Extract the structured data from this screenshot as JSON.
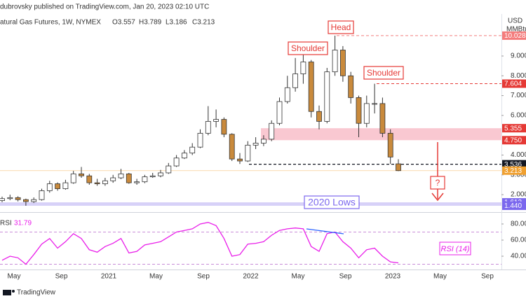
{
  "header": {
    "publisher": "dubrovsky published on TradingView.com, Jan 20, 2023 02:10 UTC",
    "symbol": "atural Gas Futures, 1W, NYMEX",
    "ohlc": [
      "O3.557",
      "H3.789",
      "L3.186",
      "C3.213"
    ],
    "currency": "USD",
    "unit": "MMBtu"
  },
  "chart_data": {
    "type": "candlestick",
    "open": [
      1.7,
      1.8,
      1.85,
      1.75,
      1.65,
      1.75,
      2.2,
      2.55,
      2.3,
      2.6,
      3.05,
      2.95,
      2.6,
      2.55,
      2.7,
      2.85,
      3.05,
      2.6,
      2.65,
      2.9,
      2.95,
      3.1,
      3.45,
      3.85,
      4.1,
      4.4,
      5.1,
      5.7,
      5.8,
      5.05,
      3.8,
      3.7,
      4.5,
      4.6,
      4.8,
      5.6,
      6.7,
      7.4,
      8.1,
      8.7,
      6.2,
      5.7,
      8.2,
      9.3,
      8.0,
      6.9,
      5.6,
      6.6,
      6.6,
      5.1,
      3.557
    ],
    "high": [
      1.9,
      2.0,
      1.92,
      1.8,
      1.86,
      2.3,
      2.7,
      2.62,
      2.75,
      3.2,
      3.4,
      3.05,
      2.8,
      2.85,
      3.0,
      3.3,
      3.1,
      2.8,
      3.0,
      3.1,
      3.25,
      3.6,
      4.0,
      4.25,
      4.6,
      5.3,
      6.47,
      6.3,
      5.9,
      5.1,
      4.1,
      4.7,
      4.9,
      5.0,
      5.75,
      6.9,
      8.0,
      8.9,
      9.4,
      8.8,
      6.5,
      8.4,
      10.03,
      9.5,
      8.2,
      7.0,
      7.0,
      7.6,
      6.9,
      5.3,
      3.789
    ],
    "low": [
      1.62,
      1.72,
      1.66,
      1.44,
      1.58,
      1.7,
      2.1,
      2.2,
      2.25,
      2.55,
      2.85,
      2.5,
      2.45,
      2.45,
      2.6,
      2.78,
      2.55,
      2.5,
      2.58,
      2.85,
      2.88,
      3.05,
      3.4,
      3.8,
      4.0,
      4.35,
      5.0,
      5.4,
      4.9,
      3.7,
      3.55,
      3.65,
      4.3,
      4.45,
      4.7,
      5.5,
      6.6,
      7.2,
      7.6,
      5.9,
      5.3,
      5.6,
      8.0,
      7.7,
      6.6,
      4.9,
      5.4,
      6.1,
      4.9,
      3.55,
      3.186
    ],
    "close": [
      1.8,
      1.85,
      1.75,
      1.65,
      1.75,
      2.2,
      2.55,
      2.3,
      2.6,
      3.05,
      2.95,
      2.6,
      2.55,
      2.7,
      2.85,
      3.05,
      2.6,
      2.65,
      2.9,
      2.95,
      3.1,
      3.45,
      3.85,
      4.1,
      4.4,
      5.1,
      5.7,
      5.8,
      5.05,
      3.8,
      3.7,
      4.5,
      4.6,
      4.8,
      5.6,
      6.7,
      7.4,
      8.1,
      8.7,
      6.2,
      5.7,
      8.2,
      9.3,
      8.0,
      6.9,
      5.6,
      6.6,
      6.6,
      5.1,
      3.9,
      3.213
    ],
    "up_color": "#ffffff",
    "down_color": "#c98a3c",
    "ylim": [
      1.12,
      11.12
    ],
    "yticks": [
      {
        "value": 2,
        "label": "2.000"
      },
      {
        "value": 3,
        "label": "3.000"
      },
      {
        "value": 4,
        "label": "4.000"
      },
      {
        "value": 6,
        "label": "6.000"
      },
      {
        "value": 7,
        "label": "7.000"
      },
      {
        "value": 8,
        "label": "8.000"
      },
      {
        "value": 9,
        "label": "9.000"
      }
    ],
    "xticks": [
      "May",
      "Sep",
      "2021",
      "May",
      "Sep",
      "2022",
      "May",
      "Sep",
      "2023",
      "May",
      "Sep"
    ],
    "levels": [
      {
        "value": 10.028,
        "label": "10.028",
        "color": "#f47c7c"
      },
      {
        "value": 7.604,
        "label": "7.604",
        "color": "#e53935"
      },
      {
        "value": 5.355,
        "label": "5.355",
        "color": "#e53935"
      },
      {
        "value": 4.75,
        "label": "4.750",
        "color": "#e53935"
      },
      {
        "value": 3.536,
        "label": "3.536",
        "color": "#131722"
      },
      {
        "value": 3.213,
        "label": "3.213",
        "color": "#f0a030"
      },
      {
        "value": 1.612,
        "label": "1.612",
        "color": "#7b68ee"
      },
      {
        "value": 1.44,
        "label": "1.440",
        "color": "#7b68ee"
      }
    ],
    "annotations": [
      "Shoulder",
      "Head",
      "Shoulder",
      "2020 Lows",
      "?"
    ],
    "rsi": {
      "title": "RSI",
      "color": "#e91ee9",
      "values": [
        35,
        40,
        38,
        30,
        42,
        55,
        62,
        50,
        58,
        68,
        62,
        48,
        45,
        52,
        56,
        62,
        44,
        46,
        54,
        56,
        58,
        64,
        70,
        72,
        74,
        80,
        82,
        78,
        62,
        40,
        42,
        55,
        56,
        58,
        66,
        72,
        74,
        75,
        74,
        52,
        46,
        68,
        70,
        58,
        50,
        38,
        48,
        50,
        40,
        33,
        31.79
      ],
      "ylim": [
        23.5,
        93
      ],
      "yticks": [
        {
          "value": 40,
          "label": "40.00"
        },
        {
          "value": 60,
          "label": "60.00"
        },
        {
          "value": 80,
          "label": "80.00"
        }
      ],
      "bands": [
        70,
        30
      ],
      "annotation": "RSI (14)"
    }
  },
  "footer": {
    "brand": "TradingView"
  }
}
